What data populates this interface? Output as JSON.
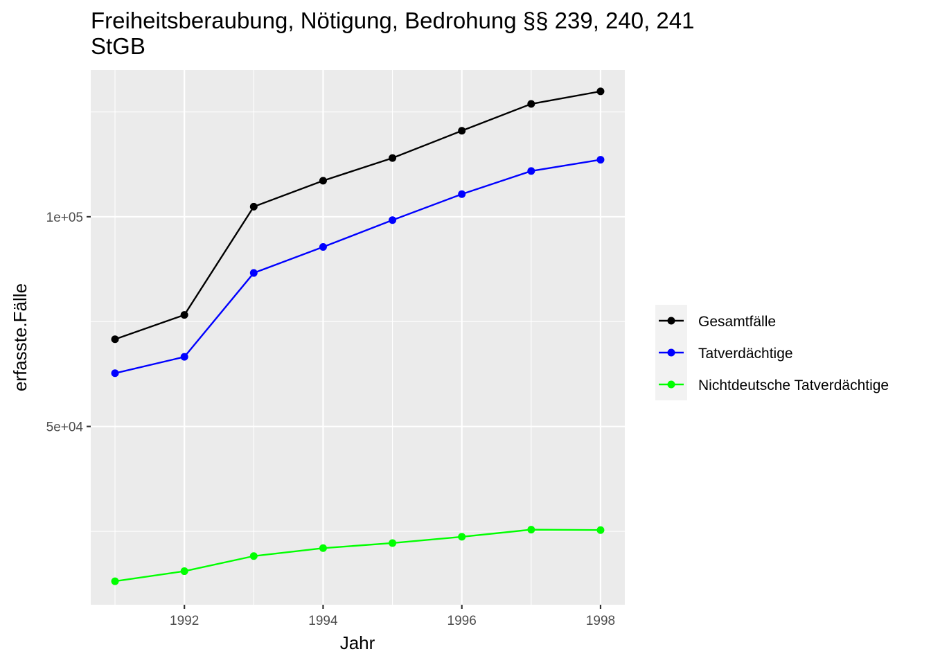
{
  "chart_data": {
    "type": "line",
    "title": "Freiheitsberaubung, Nötigung, Bedrohung §§ 239, 240, 241",
    "title_line2": "StGB",
    "xlabel": "Jahr",
    "ylabel": "erfasste.Fälle",
    "x": [
      1991,
      1992,
      1993,
      1994,
      1995,
      1996,
      1997,
      1998
    ],
    "xlim": [
      1990.65,
      1998.35
    ],
    "ylim": [
      7500,
      135000
    ],
    "x_ticks": [
      1992,
      1994,
      1996,
      1998
    ],
    "x_tick_labels": [
      "1992",
      "1994",
      "1996",
      "1998"
    ],
    "x_minor_breaks": [
      1991,
      1993,
      1995,
      1997
    ],
    "y_ticks": [
      50000,
      100000
    ],
    "y_tick_labels": [
      "5e+04",
      "1e+05"
    ],
    "y_minor_breaks": [
      25000,
      75000,
      125000
    ],
    "grid": true,
    "legend_position": "right",
    "panel_background": "#ebebeb",
    "grid_color": "#ffffff",
    "series": [
      {
        "name": "Gesamtfälle",
        "color": "#000000",
        "values": [
          70800,
          76600,
          102400,
          108600,
          114000,
          120500,
          126900,
          129900
        ]
      },
      {
        "name": "Tatverdächtige",
        "color": "#0000ff",
        "values": [
          62700,
          66600,
          86600,
          92800,
          99200,
          105400,
          110900,
          113600
        ]
      },
      {
        "name": "Nichtdeutsche Tatverdächtige",
        "color": "#00ff00",
        "values": [
          13100,
          15500,
          19100,
          21000,
          22200,
          23700,
          25400,
          25300
        ]
      }
    ]
  }
}
